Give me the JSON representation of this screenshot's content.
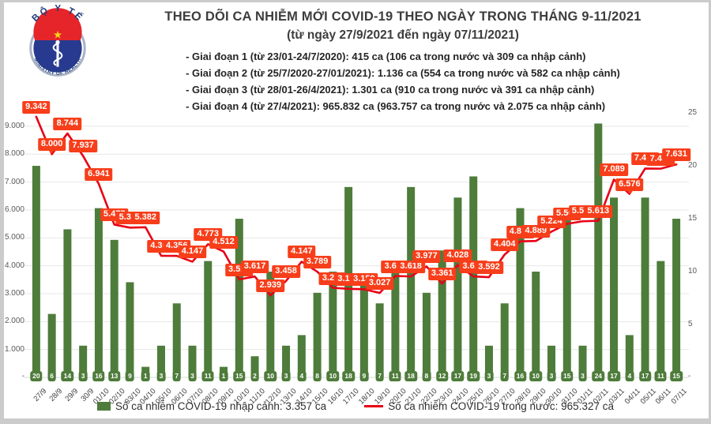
{
  "logo": {
    "arc_top": "BỘ Y TẾ",
    "arc_bottom": "MINISTRY OF HEALTH",
    "navy": "#283a8f",
    "red": "#e5252a",
    "star": "#f8d513"
  },
  "header": {
    "title": "THEO DÕI CA NHIỄM MỚI COVID-19 THEO NGÀY TRONG THÁNG 9-11/2021",
    "subtitle": "(từ ngày 27/9/2021 đến ngày 07/11/2021)",
    "notes": [
      "- Giai đoạn 1 (từ 23/01-24/7/2020): 415 ca (106 ca trong nước và 309 ca nhập cảnh)",
      "- Giai đoạn 2 (từ 25/7/2020-27/01/2021): 1.136 ca (554 ca trong nước và 582 ca nhập cảnh)",
      "- Giai đoạn 3 (từ 28/01-26/4/2021): 1.301 ca (910 ca trong nước và 391 ca nhập cảnh)",
      "- Giai đoạn 4 (từ 27/4/2021): 965.832 ca (963.757 ca trong nước và 2.075 ca nhập cảnh)"
    ]
  },
  "chart_data": {
    "type": "bar+line",
    "categories": [
      "27/9",
      "28/9",
      "29/9",
      "30/9",
      "01/10",
      "02/10",
      "03/10",
      "04/10",
      "05/10",
      "06/10",
      "07/10",
      "08/10",
      "09/10",
      "10/10",
      "11/10",
      "12/10",
      "13/10",
      "14/10",
      "15/10",
      "16/10",
      "17/10",
      "18/10",
      "19/10",
      "20/10",
      "21/10",
      "22/10",
      "23/10",
      "24/10",
      "25/10",
      "26/10",
      "27/10",
      "28/10",
      "29/10",
      "30/10",
      "31/10",
      "01/11",
      "02/11",
      "03/11",
      "04/11",
      "05/11",
      "06/11",
      "07/11"
    ],
    "series": [
      {
        "name": "Số ca nhiễm COVID-19 nhập cảnh",
        "type": "bar",
        "axis": "right",
        "color": "#4e7c3b",
        "values": [
          20,
          6,
          14,
          3,
          16,
          13,
          9,
          1,
          3,
          7,
          3,
          11,
          1,
          15,
          2,
          10,
          3,
          4,
          8,
          10,
          18,
          9,
          7,
          11,
          18,
          8,
          12,
          17,
          19,
          3,
          7,
          16,
          10,
          3,
          15,
          3,
          24,
          17,
          4,
          17,
          11,
          15
        ]
      },
      {
        "name": "Số ca nhiễm COVID-19 trong nước",
        "type": "line",
        "axis": "left",
        "color": "#e80015",
        "label_bg": "#f73e1a",
        "values": [
          9342,
          8000,
          8744,
          7937,
          6941,
          5477,
          5367,
          5382,
          4360,
          4356,
          4147,
          4773,
          4512,
          3513,
          3617,
          2939,
          3458,
          4147,
          3789,
          3211,
          3175,
          3159,
          3027,
          3635,
          3618,
          3977,
          3361,
          4028,
          3620,
          3592,
          4404,
          4876,
          4889,
          5224,
          5504,
          5595,
          5613,
          7089,
          6576,
          7487,
          7480,
          7631
        ]
      }
    ],
    "left_axis": {
      "min": 0,
      "max": 10186,
      "ticks": [
        1000,
        2000,
        3000,
        4000,
        5000,
        6000,
        7000,
        8000,
        9000
      ],
      "zero_label": "-"
    },
    "right_axis": {
      "min": 0,
      "max": 26.87,
      "ticks": [
        5,
        10,
        15,
        20,
        25
      ],
      "zero_label": "-"
    },
    "grid": "horizontal",
    "legend_position": "bottom"
  },
  "legend": {
    "items": [
      {
        "label": "Số ca nhiễm COVID-19 nhập cảnh: 3.357 ca",
        "swatch": "bar",
        "color": "#4e7c3b"
      },
      {
        "label": "Số ca nhiễm COVID-19 trong nước: 965.327 ca",
        "swatch": "line",
        "color": "#e80015"
      }
    ]
  }
}
